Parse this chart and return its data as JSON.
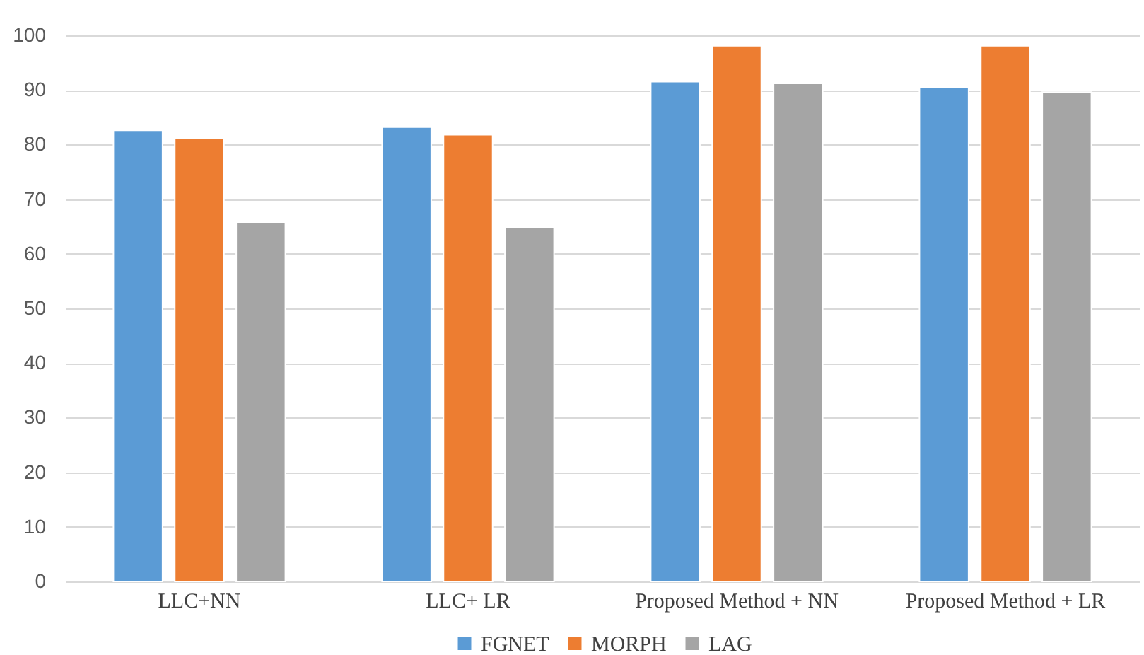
{
  "chart_data": {
    "type": "bar",
    "categories": [
      "LLC+NN",
      "LLC+ LR",
      "Proposed Method + NN",
      "Proposed Method + LR"
    ],
    "series": [
      {
        "name": "FGNET",
        "color": "#5b9bd5",
        "values": [
          82.6,
          83.2,
          91.5,
          90.4
        ]
      },
      {
        "name": "MORPH",
        "color": "#ed7d31",
        "values": [
          81.2,
          81.8,
          98.1,
          98.1
        ]
      },
      {
        "name": "LAG",
        "color": "#a5a5a5",
        "values": [
          65.8,
          64.9,
          91.2,
          89.6
        ]
      }
    ],
    "ylim": [
      0,
      100
    ],
    "yticks": [
      0,
      10,
      20,
      30,
      40,
      50,
      60,
      70,
      80,
      90,
      100
    ],
    "grid": "y",
    "legend": "bottom"
  }
}
